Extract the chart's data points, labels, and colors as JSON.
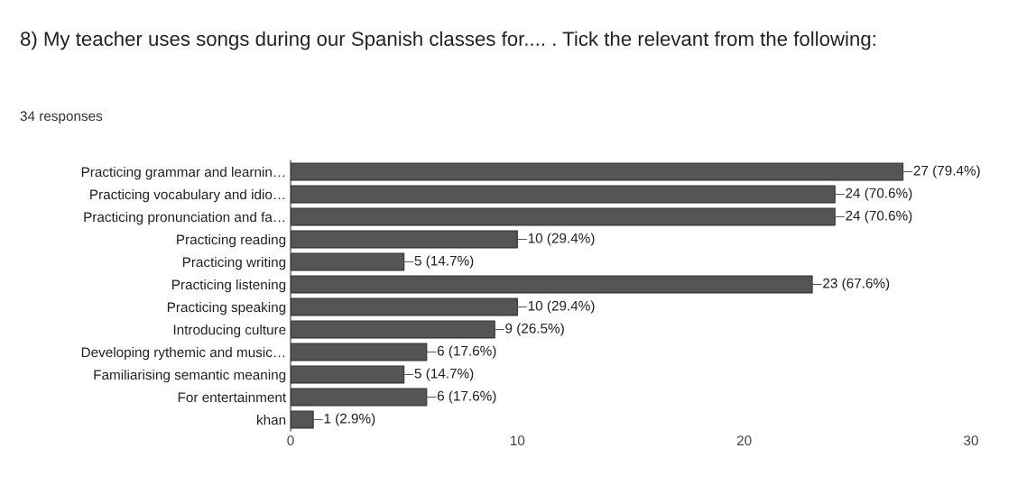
{
  "chart_data": {
    "type": "bar",
    "orientation": "horizontal",
    "title": "8) My teacher uses songs during our Spanish classes for.... . Tick the relevant from the following:",
    "subtitle": "34 responses",
    "categories": [
      "Practicing grammar and learnin…",
      "Practicing vocabulary and idio…",
      "Practicing pronunciation and fa…",
      "Practicing reading",
      "Practicing writing",
      "Practicing listening",
      "Practicing speaking",
      "Introducing culture",
      "Developing rythemic and music…",
      "Familiarising semantic meaning",
      "For entertainment",
      "khan"
    ],
    "values": [
      27,
      24,
      24,
      10,
      5,
      23,
      10,
      9,
      6,
      5,
      6,
      1
    ],
    "value_labels": [
      "27 (79.4%)",
      "24 (70.6%)",
      "24 (70.6%)",
      "10 (29.4%)",
      "5 (14.7%)",
      "23 (67.6%)",
      "10 (29.4%)",
      "9 (26.5%)",
      "6 (17.6%)",
      "5 (14.7%)",
      "6 (17.6%)",
      "1 (2.9%)"
    ],
    "color": "#555555",
    "xlim": [
      0,
      30
    ],
    "xticks": [
      0,
      10,
      20,
      30
    ],
    "grid": false,
    "legend": false
  }
}
